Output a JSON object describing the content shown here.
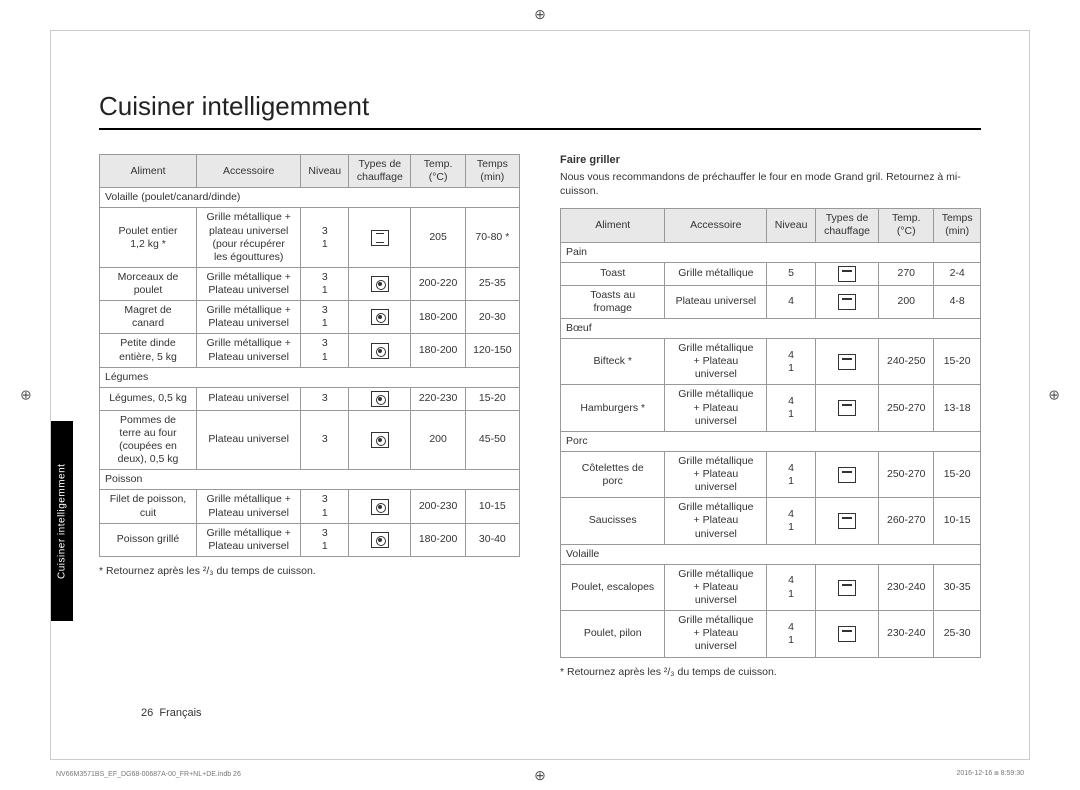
{
  "title": "Cuisiner intelligemment",
  "sideTab": "Cuisiner intelligemment",
  "headers": {
    "aliment": "Aliment",
    "accessoire": "Accessoire",
    "niveau": "Niveau",
    "chauffage1": "Types de",
    "chauffage2": "chauffage",
    "temp1": "Temp.",
    "temp2": "(°C)",
    "temps1": "Temps",
    "temps2": "(min)"
  },
  "leftTable": {
    "sections": [
      {
        "label": "Volaille (poulet/canard/dinde)",
        "rows": [
          {
            "aliment": "Poulet entier\n1,2 kg *",
            "accessoire": "Grille métallique +\nplateau universel\n(pour récupérer\nles égouttures)",
            "niveau": "3\n1",
            "icon": "conv",
            "temp": "205",
            "temps": "70-80 *"
          },
          {
            "aliment": "Morceaux de\npoulet",
            "accessoire": "Grille métallique +\nPlateau universel",
            "niveau": "3\n1",
            "icon": "fan",
            "temp": "200-220",
            "temps": "25-35"
          },
          {
            "aliment": "Magret de\ncanard",
            "accessoire": "Grille métallique +\nPlateau universel",
            "niveau": "3\n1",
            "icon": "fan",
            "temp": "180-200",
            "temps": "20-30"
          },
          {
            "aliment": "Petite dinde\nentière, 5 kg",
            "accessoire": "Grille métallique +\nPlateau universel",
            "niveau": "3\n1",
            "icon": "fan",
            "temp": "180-200",
            "temps": "120-150"
          }
        ]
      },
      {
        "label": "Légumes",
        "rows": [
          {
            "aliment": "Légumes, 0,5 kg",
            "accessoire": "Plateau universel",
            "niveau": "3",
            "icon": "fan",
            "temp": "220-230",
            "temps": "15-20"
          },
          {
            "aliment": "Pommes de\nterre au four\n(coupées en\ndeux), 0,5 kg",
            "accessoire": "Plateau universel",
            "niveau": "3",
            "icon": "fan",
            "temp": "200",
            "temps": "45-50"
          }
        ]
      },
      {
        "label": "Poisson",
        "rows": [
          {
            "aliment": "Filet de poisson,\ncuit",
            "accessoire": "Grille métallique +\nPlateau universel",
            "niveau": "3\n1",
            "icon": "fan",
            "temp": "200-230",
            "temps": "10-15"
          },
          {
            "aliment": "Poisson grillé",
            "accessoire": "Grille métallique +\nPlateau universel",
            "niveau": "3\n1",
            "icon": "fan",
            "temp": "180-200",
            "temps": "30-40"
          }
        ]
      }
    ]
  },
  "leftFootnote": "* Retournez après les ²/₃ du temps de cuisson.",
  "rightHeading": "Faire griller",
  "rightDesc": "Nous vous recommandons de préchauffer le four en mode Grand gril. Retournez à mi-cuisson.",
  "rightTable": {
    "sections": [
      {
        "label": "Pain",
        "rows": [
          {
            "aliment": "Toast",
            "accessoire": "Grille métallique",
            "niveau": "5",
            "icon": "grill",
            "temp": "270",
            "temps": "2-4"
          },
          {
            "aliment": "Toasts au\nfromage",
            "accessoire": "Plateau universel",
            "niveau": "4",
            "icon": "grill",
            "temp": "200",
            "temps": "4-8"
          }
        ]
      },
      {
        "label": "Bœuf",
        "rows": [
          {
            "aliment": "Bifteck *",
            "accessoire": "Grille métallique\n+ Plateau\nuniversel",
            "niveau": "4\n1",
            "icon": "grill",
            "temp": "240-250",
            "temps": "15-20"
          },
          {
            "aliment": "Hamburgers *",
            "accessoire": "Grille métallique\n+ Plateau\nuniversel",
            "niveau": "4\n1",
            "icon": "grill",
            "temp": "250-270",
            "temps": "13-18"
          }
        ]
      },
      {
        "label": "Porc",
        "rows": [
          {
            "aliment": "Côtelettes de\nporc",
            "accessoire": "Grille métallique\n+ Plateau\nuniversel",
            "niveau": "4\n1",
            "icon": "grill",
            "temp": "250-270",
            "temps": "15-20"
          },
          {
            "aliment": "Saucisses",
            "accessoire": "Grille métallique\n+ Plateau\nuniversel",
            "niveau": "4\n1",
            "icon": "grill",
            "temp": "260-270",
            "temps": "10-15"
          }
        ]
      },
      {
        "label": "Volaille",
        "rows": [
          {
            "aliment": "Poulet, escalopes",
            "accessoire": "Grille métallique\n+ Plateau\nuniversel",
            "niveau": "4\n1",
            "icon": "grill",
            "temp": "230-240",
            "temps": "30-35"
          },
          {
            "aliment": "Poulet, pilon",
            "accessoire": "Grille métallique\n+ Plateau\nuniversel",
            "niveau": "4\n1",
            "icon": "grill",
            "temp": "230-240",
            "temps": "25-30"
          }
        ]
      }
    ]
  },
  "rightFootnote": "* Retournez après les ²/₃ du temps de cuisson.",
  "pageFoot": {
    "num": "26",
    "lang": "Français"
  },
  "imprint": {
    "left": "NV66M3571BS_EF_DG68-00687A-00_FR+NL+DE.indb   26",
    "right": "2016-12-16   ⧈ 8:59:30"
  }
}
